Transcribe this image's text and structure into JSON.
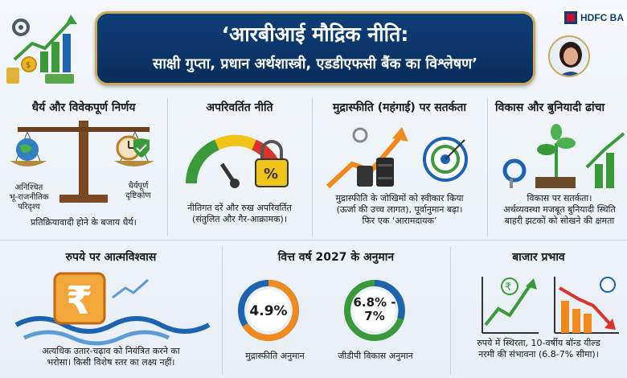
{
  "header": {
    "title": "‘आरबीआई मौद्रिक नीति:",
    "subtitle": "साक्षी गुप्ता, प्रधान अर्थशास्त्री, एडडीएफसी बैंक का विश्लेषण’",
    "logo_text": "HDFC BA"
  },
  "cards": {
    "patience": {
      "title": "धैर्य और विवेकपूर्ण निर्णय",
      "left_label": "अनिश्चित\nभू-राजनीतिक\nपरिदृश्य",
      "right_label": "धैर्यपूर्ण\nदृष्टिकोण",
      "text": "प्रतिक्रियावादी होने के बजाय धैर्य।"
    },
    "policy": {
      "title": "अपरिवर्तित नीति",
      "gauge_symbol": "%",
      "text": "नीतिगत दरें और रुख अपरिवर्तित\n(संतुलित और गैर-आक्रामक)।"
    },
    "inflation": {
      "title": "मुद्रास्फीति (महंगाई) पर सतर्कता",
      "text": "मुद्रास्फीति के जोखिमों को स्वीकार किया\n(ऊर्जा की उच्च लागत), पूर्वानुमान बढ़ा।\nफिर एक ‘आरामदायक’"
    },
    "growth": {
      "title": "विकास और बुनियादी ढांचा",
      "text": "विकास पर सतर्कता।\nअर्थव्यवस्था मजबूत बुनियादी स्थिति\nबाहरी झटकों को सोखने की क्षमता"
    },
    "rupee": {
      "title": "रुपये पर आत्मविश्वास",
      "symbol": "₹",
      "text": "अत्यधिक उतार-चढ़ाव को नियंत्रित करने का\nभरोसा। किसी विशेष स्तर का लक्ष्य नहीं।"
    },
    "forecast": {
      "title": "वित्त वर्ष 2027 के अनुमान",
      "inflation_value": "4.9%",
      "inflation_label": "मुद्रास्फीति अनुमान",
      "gdp_value": "6.8% -\n7%",
      "gdp_label": "जीडीपी विकास अनुमान"
    },
    "market": {
      "title": "बाजार प्रभाव",
      "symbol": "₹",
      "text": "रुपये में स्थिरता, 10-वर्षीय बॉन्ड यील्ड\nनरमी की संभावना (6.8-7% सीमा)।"
    }
  },
  "colors": {
    "navy": "#0c3f78",
    "gold": "#c9a95a",
    "orange": "#f08a1c",
    "green": "#3a9a3a",
    "red": "#d8342b",
    "blue": "#1e63b0"
  }
}
